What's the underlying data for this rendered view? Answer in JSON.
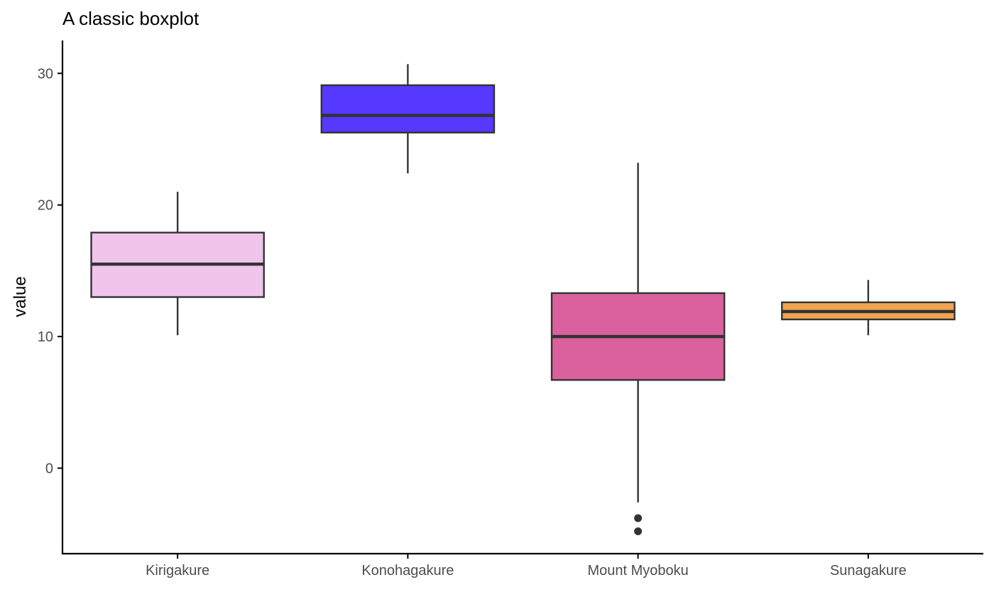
{
  "chart_data": {
    "type": "boxplot",
    "title": "A classic boxplot",
    "xlabel": "",
    "ylabel": "value",
    "ylim": [
      -6.5,
      32.5
    ],
    "yticks": [
      0,
      10,
      20,
      30
    ],
    "grid": false,
    "legend": "none",
    "categories": [
      "Kirigakure",
      "Konohagakure",
      "Mount Myoboku",
      "Sunagakure"
    ],
    "boxes": [
      {
        "category": "Kirigakure",
        "whisker_low": 10.1,
        "q1": 13.0,
        "median": 15.5,
        "q3": 17.9,
        "whisker_high": 21.0,
        "outliers": [],
        "fill": "#f1c4eb"
      },
      {
        "category": "Konohagakure",
        "whisker_low": 22.4,
        "q1": 25.5,
        "median": 26.8,
        "q3": 29.1,
        "whisker_high": 30.7,
        "outliers": [],
        "fill": "#5539ff"
      },
      {
        "category": "Mount Myoboku",
        "whisker_low": -2.6,
        "q1": 6.7,
        "median": 10.0,
        "q3": 13.3,
        "whisker_high": 23.2,
        "outliers": [
          -3.8,
          -4.8
        ],
        "fill": "#da619d"
      },
      {
        "category": "Sunagakure",
        "whisker_low": 10.1,
        "q1": 11.3,
        "median": 11.9,
        "q3": 12.6,
        "whisker_high": 14.3,
        "outliers": [],
        "fill": "#f0a450"
      }
    ]
  }
}
